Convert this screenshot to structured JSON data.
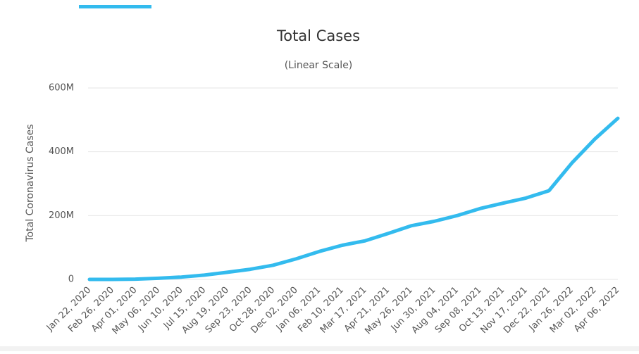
{
  "chart_data": {
    "type": "line",
    "title": "Total Cases",
    "subtitle": "(Linear Scale)",
    "y_label": "Total Coronavirus Cases",
    "categories": [
      "Jan 22, 2020",
      "Feb 26, 2020",
      "Apr 01, 2020",
      "May 06, 2020",
      "Jun 10, 2020",
      "Jul 15, 2020",
      "Aug 19, 2020",
      "Sep 23, 2020",
      "Oct 28, 2020",
      "Dec 02, 2020",
      "Jan 06, 2021",
      "Feb 10, 2021",
      "Mar 17, 2021",
      "Apr 21, 2021",
      "May 26, 2021",
      "Jun 30, 2021",
      "Aug 04, 2021",
      "Sep 08, 2021",
      "Oct 13, 2021",
      "Nov 17, 2021",
      "Dec 22, 2021",
      "Jan 26, 2022",
      "Mar 02, 2022",
      "Apr 06, 2022"
    ],
    "values": [
      600,
      80000,
      900000,
      3700000,
      7300000,
      13500000,
      22300000,
      31800000,
      44500000,
      64500000,
      87500000,
      107000000,
      121000000,
      144000000,
      168000000,
      182000000,
      200000000,
      222000000,
      239000000,
      255000000,
      278000000,
      365000000,
      440000000,
      505000000
    ],
    "color": "#33bbee",
    "ylim": [
      0,
      600000000
    ],
    "yticks": [
      0,
      {
        "value": 200000000,
        "label": "200M"
      },
      {
        "value": 400000000,
        "label": "400M"
      },
      {
        "value": 600000000,
        "label": "600M"
      }
    ],
    "grid": true
  }
}
